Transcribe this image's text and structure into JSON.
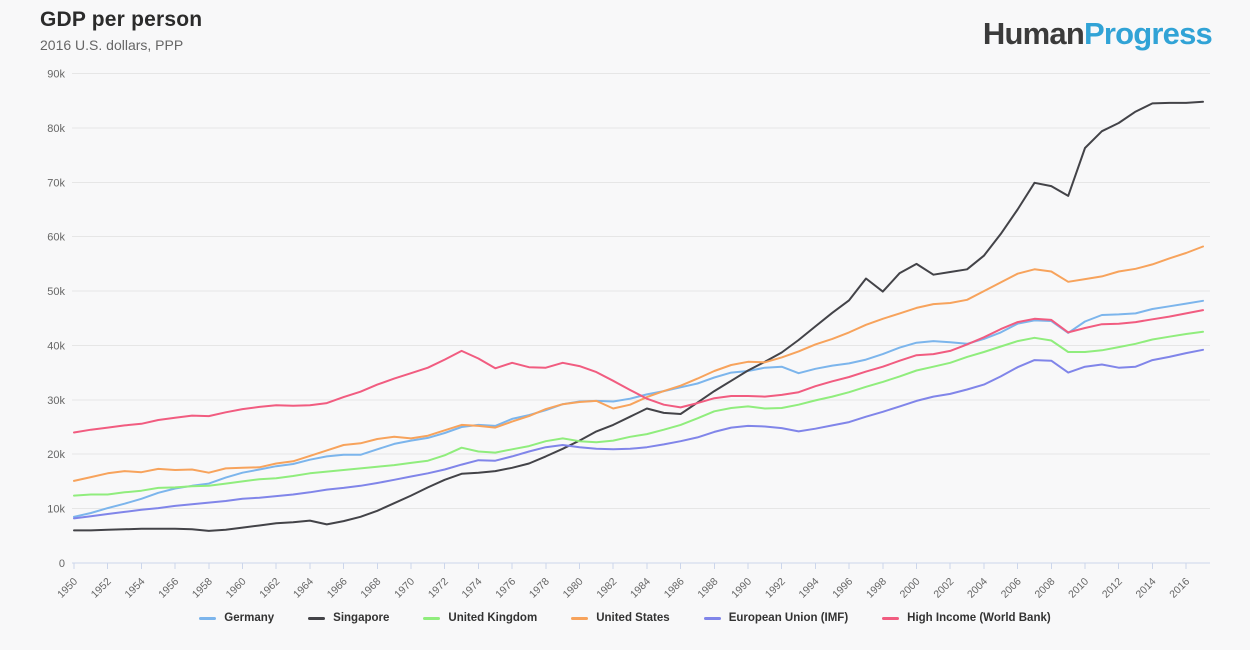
{
  "header": {
    "title": "GDP per person",
    "subtitle": "2016 U.S. dollars, PPP",
    "logo": {
      "dark": "Human",
      "accent": "Progress"
    }
  },
  "colors": {
    "background": "#f8f8f9",
    "grid": "#e6e6e6",
    "axis": "#ccd6eb",
    "axis_label": "#666666",
    "title": "#2b2b2b",
    "subtitle": "#666666",
    "legend_label": "#333333",
    "logo_dark": "#3b3b3b",
    "logo_accent": "#31a3d6"
  },
  "chart_data": {
    "type": "line",
    "title": "GDP per person",
    "subtitle": "2016 U.S. dollars, PPP",
    "unit": "2016 U.S. dollars, PPP",
    "values_unit": "thousands of 2016 U.S. dollars (PPP)",
    "x_label": "",
    "y_label": "",
    "x_start": 1950,
    "x_end": 2017,
    "x_ticks": [
      1950,
      1952,
      1954,
      1956,
      1958,
      1960,
      1962,
      1964,
      1966,
      1968,
      1970,
      1972,
      1974,
      1976,
      1978,
      1980,
      1982,
      1984,
      1986,
      1988,
      1990,
      1992,
      1994,
      1996,
      1998,
      2000,
      2002,
      2004,
      2006,
      2008,
      2010,
      2012,
      2014,
      2016
    ],
    "y_axis": {
      "min": 0,
      "max": 90,
      "tick_interval": 10,
      "tick_labels": [
        "0",
        "10k",
        "20k",
        "30k",
        "40k",
        "50k",
        "60k",
        "70k",
        "80k",
        "90k"
      ]
    },
    "grid": "horizontal",
    "legend_position": "bottom",
    "series": [
      {
        "name": "Germany",
        "color": "#7cb5ec",
        "values": [
          8.5,
          9.2,
          10.1,
          10.9,
          11.8,
          12.9,
          13.7,
          14.2,
          14.6,
          15.7,
          16.6,
          17.2,
          17.8,
          18.2,
          19.0,
          19.6,
          19.9,
          19.9,
          20.9,
          21.9,
          22.5,
          23.0,
          23.9,
          25.0,
          25.4,
          25.2,
          26.5,
          27.2,
          28.1,
          29.2,
          29.7,
          29.8,
          29.7,
          30.2,
          31.0,
          31.6,
          32.3,
          33.0,
          34.1,
          35.0,
          35.3,
          35.9,
          36.1,
          34.9,
          35.7,
          36.3,
          36.7,
          37.4,
          38.4,
          39.6,
          40.5,
          40.8,
          40.6,
          40.3,
          41.2,
          42.4,
          44.0,
          44.6,
          44.5,
          42.3,
          44.4,
          45.6,
          45.7,
          45.9,
          46.7,
          47.2,
          47.7,
          48.2
        ]
      },
      {
        "name": "Singapore",
        "color": "#434348",
        "values": [
          6.0,
          6.0,
          6.1,
          6.2,
          6.3,
          6.3,
          6.3,
          6.2,
          5.9,
          6.1,
          6.5,
          6.9,
          7.3,
          7.5,
          7.8,
          7.1,
          7.7,
          8.5,
          9.6,
          11.0,
          12.4,
          13.9,
          15.3,
          16.4,
          16.6,
          16.9,
          17.5,
          18.3,
          19.6,
          21.0,
          22.5,
          24.2,
          25.4,
          26.9,
          28.4,
          27.6,
          27.4,
          29.5,
          31.6,
          33.5,
          35.4,
          37.0,
          38.7,
          41.0,
          43.5,
          46.0,
          48.3,
          52.3,
          49.9,
          53.3,
          55.0,
          53.0,
          53.5,
          54.0,
          56.5,
          60.5,
          65.0,
          69.9,
          69.3,
          67.5,
          76.3,
          79.4,
          80.9,
          83.0,
          84.5,
          84.6,
          84.6,
          84.8
        ]
      },
      {
        "name": "United Kingdom",
        "color": "#90ed7d",
        "values": [
          12.4,
          12.6,
          12.6,
          13.0,
          13.3,
          13.8,
          13.9,
          14.1,
          14.2,
          14.6,
          15.0,
          15.4,
          15.6,
          16.0,
          16.5,
          16.8,
          17.1,
          17.4,
          17.7,
          18.0,
          18.4,
          18.8,
          19.8,
          21.2,
          20.5,
          20.3,
          20.9,
          21.5,
          22.4,
          22.9,
          22.4,
          22.2,
          22.5,
          23.2,
          23.7,
          24.5,
          25.4,
          26.6,
          27.9,
          28.5,
          28.8,
          28.4,
          28.5,
          29.1,
          29.9,
          30.6,
          31.4,
          32.4,
          33.3,
          34.3,
          35.4,
          36.1,
          36.8,
          37.9,
          38.8,
          39.8,
          40.8,
          41.4,
          40.9,
          38.8,
          38.8,
          39.1,
          39.7,
          40.3,
          41.1,
          41.6,
          42.1,
          42.5
        ]
      },
      {
        "name": "United States",
        "color": "#f7a35c",
        "values": [
          15.1,
          15.8,
          16.5,
          16.9,
          16.7,
          17.3,
          17.1,
          17.2,
          16.6,
          17.4,
          17.5,
          17.6,
          18.3,
          18.7,
          19.7,
          20.7,
          21.7,
          22.0,
          22.8,
          23.2,
          22.9,
          23.4,
          24.4,
          25.4,
          25.2,
          24.9,
          26.0,
          27.0,
          28.3,
          29.2,
          29.6,
          29.8,
          28.4,
          29.1,
          30.5,
          31.6,
          32.6,
          33.9,
          35.3,
          36.4,
          37.0,
          36.9,
          37.8,
          38.9,
          40.2,
          41.2,
          42.4,
          43.8,
          44.9,
          45.9,
          46.9,
          47.6,
          47.8,
          48.4,
          50.0,
          51.6,
          53.2,
          54.0,
          53.6,
          51.7,
          52.2,
          52.7,
          53.6,
          54.1,
          54.9,
          56.0,
          57.0,
          58.2
        ]
      },
      {
        "name": "European Union (IMF)",
        "color": "#8085e9",
        "values": [
          8.2,
          8.6,
          9.0,
          9.4,
          9.8,
          10.1,
          10.5,
          10.8,
          11.1,
          11.4,
          11.8,
          12.0,
          12.3,
          12.6,
          13.0,
          13.5,
          13.8,
          14.2,
          14.7,
          15.3,
          15.9,
          16.5,
          17.2,
          18.1,
          18.9,
          18.8,
          19.6,
          20.5,
          21.3,
          21.7,
          21.3,
          21.0,
          20.9,
          21.0,
          21.3,
          21.8,
          22.4,
          23.1,
          24.1,
          24.9,
          25.2,
          25.1,
          24.8,
          24.2,
          24.7,
          25.3,
          25.9,
          26.9,
          27.8,
          28.8,
          29.8,
          30.6,
          31.1,
          31.9,
          32.8,
          34.3,
          36.0,
          37.3,
          37.2,
          35.0,
          36.1,
          36.5,
          35.9,
          36.1,
          37.3,
          37.9,
          38.6,
          39.2
        ]
      },
      {
        "name": "High Income (World Bank)",
        "color": "#f15c80",
        "values": [
          24.0,
          24.5,
          24.9,
          25.3,
          25.6,
          26.3,
          26.7,
          27.1,
          27.0,
          27.7,
          28.3,
          28.7,
          29.0,
          28.9,
          29.0,
          29.4,
          30.5,
          31.5,
          32.8,
          33.9,
          34.9,
          35.9,
          37.4,
          39.0,
          37.6,
          35.8,
          36.8,
          36.0,
          35.9,
          36.8,
          36.2,
          35.1,
          33.5,
          31.8,
          30.2,
          29.1,
          28.6,
          29.4,
          30.3,
          30.7,
          30.7,
          30.6,
          30.9,
          31.4,
          32.5,
          33.4,
          34.2,
          35.2,
          36.1,
          37.2,
          38.2,
          38.4,
          39.0,
          40.2,
          41.5,
          43.0,
          44.3,
          44.9,
          44.7,
          42.4,
          43.2,
          43.9,
          44.0,
          44.3,
          44.8,
          45.3,
          45.9,
          46.5
        ]
      }
    ]
  }
}
